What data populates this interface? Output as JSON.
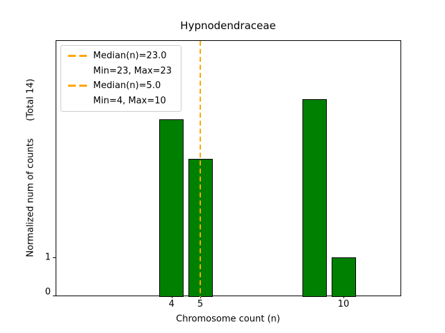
{
  "chart_data": {
    "type": "bar",
    "title": "Hypnodendraceae",
    "xlabel": "Chromosome count (n)",
    "ylabel": "Normalized num of counts      (Total 14)",
    "total": 14,
    "x": [
      4,
      5,
      9,
      10
    ],
    "values": [
      4.5,
      3.5,
      5,
      1
    ],
    "bar_width_units": 0.85,
    "bar_color": "#008000",
    "bar_edge_color": "#000000",
    "xticks": [
      "4",
      "5",
      "10"
    ],
    "xtick_values": [
      4,
      5,
      10
    ],
    "yticks": [
      "0",
      "1"
    ],
    "ytick_values": [
      0,
      1
    ],
    "xlim": [
      0,
      12
    ],
    "ylim": [
      0,
      6.5
    ],
    "grid": false,
    "median_line": {
      "x": 5,
      "color": "#FFA500",
      "style": "dashed"
    },
    "legend": {
      "position": "upper left",
      "entries": [
        {
          "marker": "orange-dashed-line",
          "label_lines": [
            "Median(n)=23.0",
            "Min=23, Max=23"
          ]
        },
        {
          "marker": "orange-dashed-line",
          "label_lines": [
            "Median(n)=5.0",
            "Min=4, Max=10"
          ]
        }
      ]
    }
  }
}
